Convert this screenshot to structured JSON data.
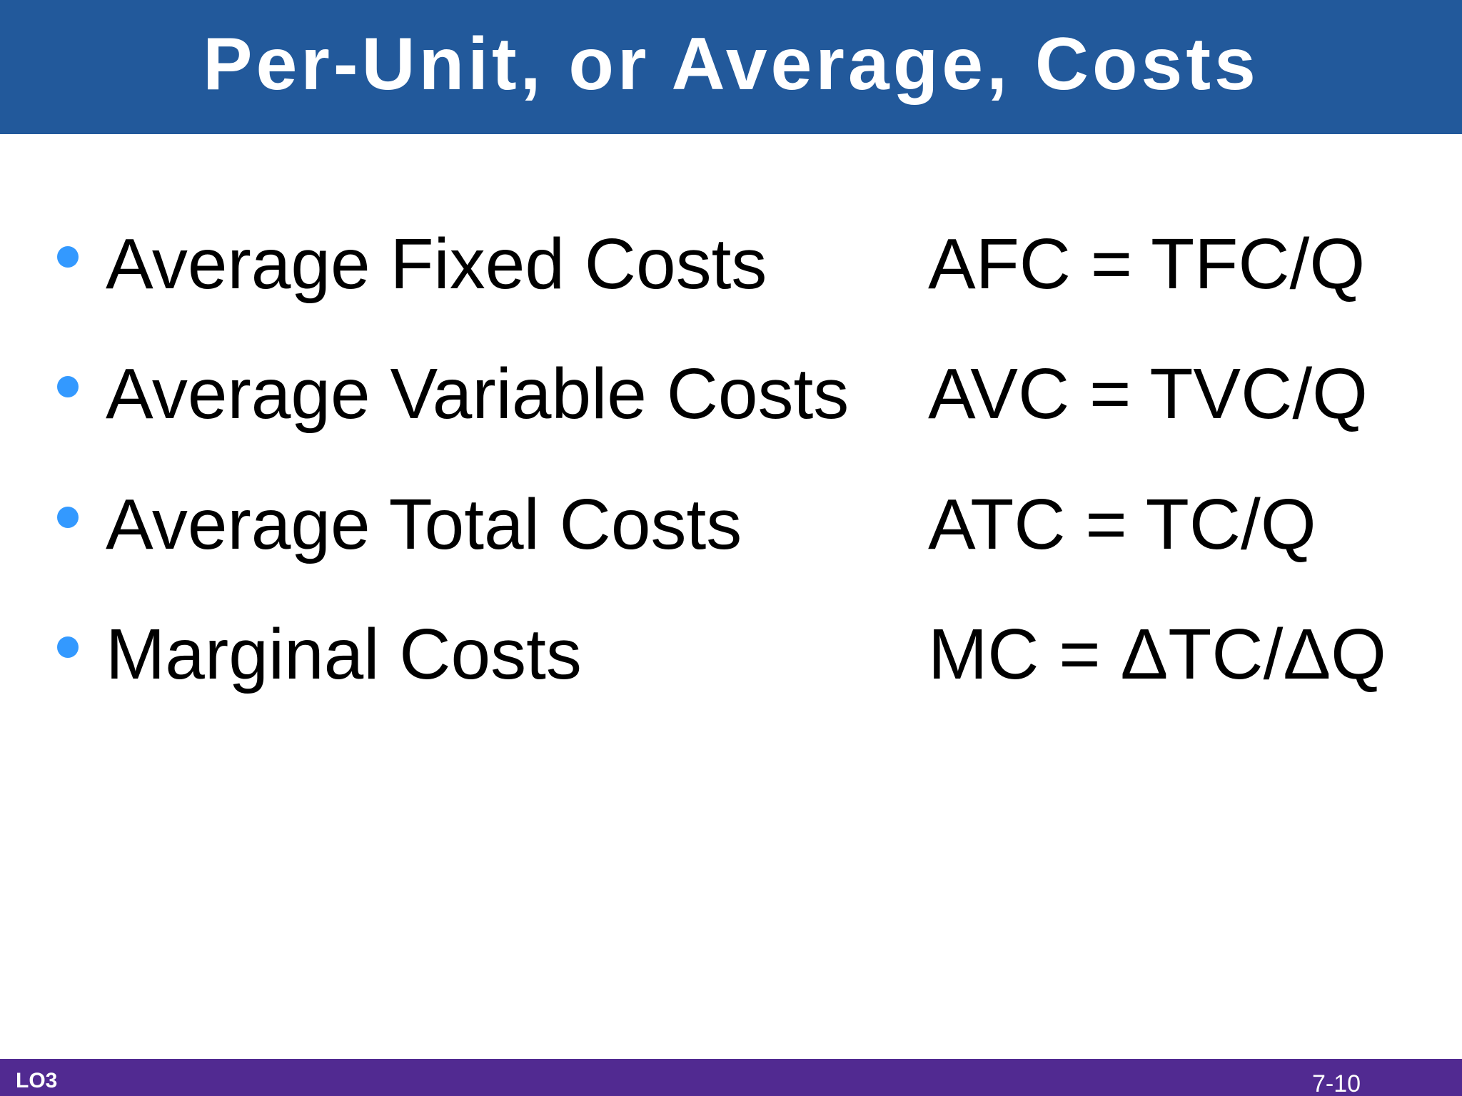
{
  "slide": {
    "title": "Per-Unit, or Average, Costs",
    "bullet_color": "#3399ff",
    "title_bar_color": "#22599b",
    "footer_bar_color": "#512a91",
    "items": [
      {
        "label": "Average Fixed Costs",
        "formula": "AFC = TFC/Q"
      },
      {
        "label": "Average Variable Costs",
        "formula": "AVC = TVC/Q"
      },
      {
        "label": "Average Total Costs",
        "formula": "ATC = TC/Q"
      },
      {
        "label": "Marginal Costs",
        "formula": "MC = ΔTC/ΔQ"
      }
    ],
    "footer": {
      "left": "LO3",
      "right": "7-10"
    }
  }
}
